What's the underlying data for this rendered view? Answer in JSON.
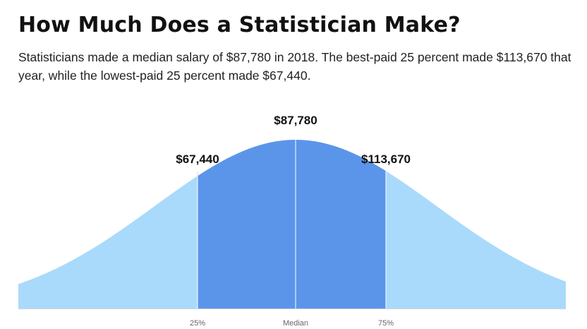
{
  "header": {
    "title": "How Much Does a Statistician Make?",
    "description": "Statisticians made a median salary of $87,780 in 2018. The best-paid 25 percent made $113,670 that year, while the lowest-paid 25 percent made $67,440."
  },
  "colors": {
    "outer_fill": "#a9dafb",
    "inner_fill": "#5b95ea",
    "marker_line": "#ffffff",
    "guide_line": "#dddddd",
    "baseline": "#cfd6dc"
  },
  "chart_data": {
    "type": "area",
    "title": "",
    "xlabel": "",
    "ylabel": "",
    "markers": [
      {
        "tick": "25%",
        "value": 67440,
        "label": "$67,440"
      },
      {
        "tick": "Median",
        "value": 87780,
        "label": "$87,780"
      },
      {
        "tick": "75%",
        "value": 113670,
        "label": "$113,670"
      }
    ],
    "highlighted_range": [
      "25%",
      "75%"
    ]
  }
}
